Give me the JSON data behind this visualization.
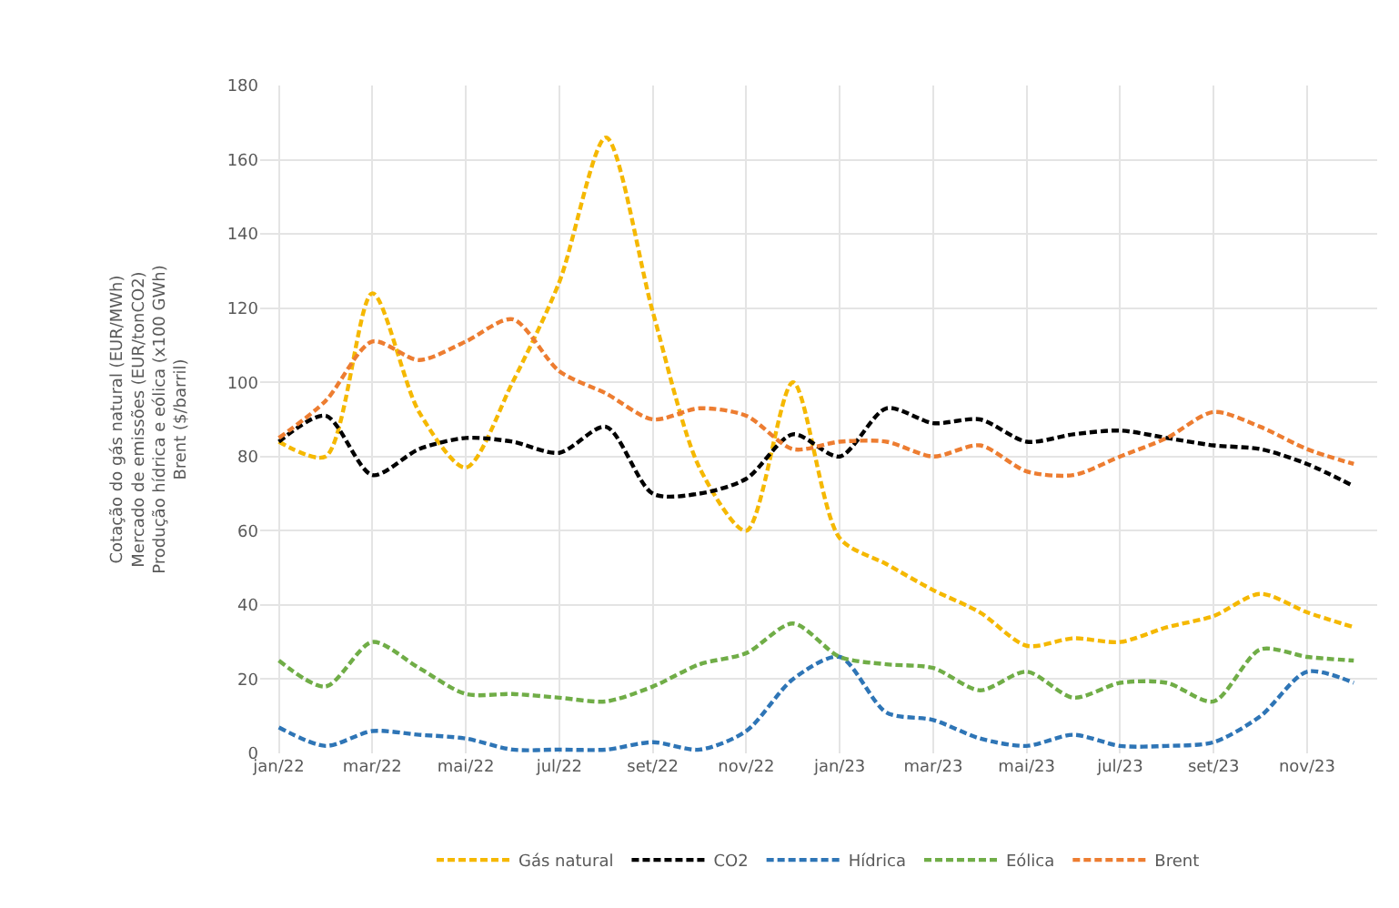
{
  "chart_data": {
    "type": "line",
    "ylabel": "Cotação do gás natural (EUR/MWh)\nMercado de emissões (EUR/tonCO2)\nProdução hídrica e eólica (x100 GWh)\nBrent ($/barril)",
    "categories": [
      "jan/22",
      null,
      "mar/22",
      null,
      "mai/22",
      null,
      "jul/22",
      null,
      "set/22",
      null,
      "nov/22",
      null,
      "jan/23",
      null,
      "mar/23",
      null,
      "mai/23",
      null,
      "jul/23",
      null,
      "set/23",
      null,
      "nov/23",
      null
    ],
    "series": [
      {
        "name": "Gás natural",
        "color": "#f5b800",
        "values": [
          84,
          80,
          124,
          92,
          77,
          100,
          127,
          166,
          119,
          77,
          60,
          100,
          58,
          51,
          44,
          38,
          29,
          31,
          30,
          34,
          37,
          43,
          38,
          34
        ]
      },
      {
        "name": "CO2",
        "color": "#000000",
        "values": [
          84,
          91,
          75,
          82,
          85,
          84,
          81,
          88,
          70,
          70,
          74,
          86,
          80,
          93,
          89,
          90,
          84,
          86,
          87,
          85,
          83,
          82,
          78,
          72
        ]
      },
      {
        "name": "Hídrica",
        "color": "#2e75b6",
        "values": [
          7,
          2,
          6,
          5,
          4,
          1,
          1,
          1,
          3,
          1,
          6,
          20,
          26,
          11,
          9,
          4,
          2,
          5,
          2,
          2,
          3,
          10,
          22,
          19
        ]
      },
      {
        "name": "Eólica",
        "color": "#70ad47",
        "values": [
          25,
          18,
          30,
          23,
          16,
          16,
          15,
          14,
          18,
          24,
          27,
          35,
          26,
          24,
          23,
          17,
          22,
          15,
          19,
          19,
          14,
          28,
          26,
          25
        ]
      },
      {
        "name": "Brent",
        "color": "#ed7d31",
        "values": [
          85,
          95,
          111,
          106,
          111,
          117,
          103,
          97,
          90,
          93,
          91,
          82,
          84,
          84,
          80,
          83,
          76,
          75,
          80,
          85,
          92,
          88,
          82,
          78
        ]
      }
    ],
    "ylim": [
      0,
      180
    ],
    "yticks": [
      0,
      20,
      40,
      60,
      80,
      100,
      120,
      140,
      160,
      180
    ],
    "grid": true,
    "legend": "bottom",
    "line_style": "dashed",
    "marker": "none"
  }
}
